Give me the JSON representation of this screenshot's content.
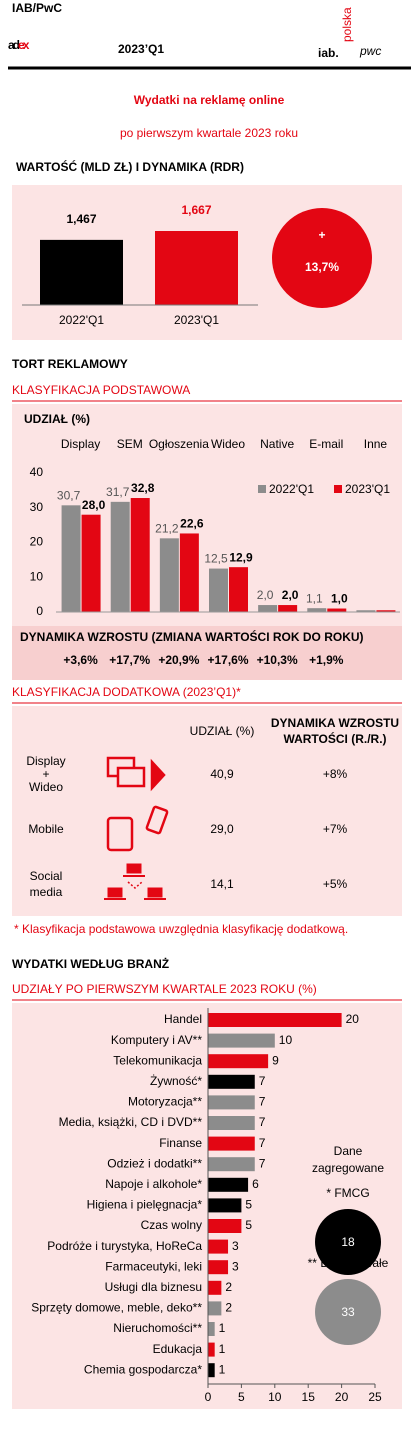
{
  "header": {
    "brand_top": "IAB/PwC",
    "brand_a": "ad",
    "brand_b": "ex",
    "period": "2023’Q1",
    "logo_iab": "iab.",
    "logo_iab_sub": "polska",
    "logo_pwc": "pwc",
    "title": "Wydatki na reklamę online",
    "subtitle": "po pierwszym kwartale 2023 roku"
  },
  "chart_data": [
    {
      "type": "bar",
      "title": "WARTOŚĆ (MLD ZŁ) I DYNAMIKA (RDR)",
      "categories": [
        "2022'Q1",
        "2023'Q1"
      ],
      "values": [
        1.467,
        1.667
      ],
      "value_labels": [
        "1,467",
        "1,667"
      ],
      "colors": [
        "#000000",
        "#e30613"
      ],
      "growth_sign": "+",
      "growth_label": "13,7%"
    },
    {
      "type": "grouped-bar",
      "title": "TORT REKLAMOWY",
      "subtitle": "KLASYFIKACJA PODSTAWOWA",
      "ylabel": "UDZIAŁ (%)",
      "categories": [
        "Display",
        "SEM",
        "Ogłoszenia",
        "Wideo",
        "Native",
        "E-mail",
        "Inne"
      ],
      "series": [
        {
          "name": "2022'Q1",
          "color": "#8c8c8c",
          "values": [
            30.7,
            31.7,
            21.2,
            12.5,
            2.0,
            1.1,
            0.5
          ],
          "value_labels": [
            "30,7",
            "31,7",
            "21,2",
            "12,5",
            "2,0",
            "1,1",
            null
          ]
        },
        {
          "name": "2023'Q1",
          "color": "#e30613",
          "values": [
            28.0,
            32.8,
            22.6,
            12.9,
            2.0,
            1.0,
            0.5
          ],
          "value_labels": [
            "28,0",
            "32,8",
            "22,6",
            "12,9",
            "2,0",
            "1,0",
            null
          ]
        }
      ],
      "ylim": [
        0,
        40
      ],
      "yticks": [
        0,
        10,
        20,
        30,
        40
      ],
      "grid": false,
      "growth_title": "DYNAMIKA WZROSTU (ZMIANA WARTOŚCI ROK DO ROKU)",
      "growth_labels": [
        "+3,6%",
        "+17,7%",
        "+20,9%",
        "+17,6%",
        "+10,3%",
        "+1,9%"
      ]
    },
    {
      "type": "barh",
      "title": "WYDATKI WEDŁUG BRANŻ",
      "subtitle": "UDZIAŁY PO PIERWSZYM KWARTALE 2023 ROKU (%)",
      "categories": [
        "Handel",
        "Komputery i AV**",
        "Telekomunikacja",
        "Żywność*",
        "Motoryzacja**",
        "Media, książki, CD i DVD**",
        "Finanse",
        "Odzież i dodatki**",
        "Napoje i alkohole*",
        "Higiena i pielęgnacja*",
        "Czas wolny",
        "Podróże i turystyka, HoReCa",
        "Farmaceutyki, leki",
        "Usługi dla biznesu",
        "Sprzęty domowe, meble, deko**",
        "Nieruchomości**",
        "Edukacja",
        "Chemia gospodarcza*"
      ],
      "values": [
        20,
        10,
        9,
        7,
        7,
        7,
        7,
        7,
        6,
        5,
        5,
        3,
        3,
        2,
        2,
        1,
        1,
        1
      ],
      "colors": [
        "#e30613",
        "#8c8c8c",
        "#e30613",
        "#000000",
        "#8c8c8c",
        "#8c8c8c",
        "#e30613",
        "#8c8c8c",
        "#000000",
        "#000000",
        "#e30613",
        "#e30613",
        "#e30613",
        "#e30613",
        "#8c8c8c",
        "#8c8c8c",
        "#e30613",
        "#000000"
      ],
      "xlim": [
        0,
        25
      ],
      "xticks": [
        0,
        5,
        10,
        15,
        20,
        25
      ],
      "aggregate_title_1": "Dane",
      "aggregate_title_2": "zagregowane",
      "aggregates": [
        {
          "label": "* FMCG",
          "value": 18,
          "color": "#000000"
        },
        {
          "label": "** Dobra trwałe",
          "value": 33,
          "color": "#8c8c8c"
        }
      ]
    }
  ],
  "extra": {
    "title": "KLASYFIKACJA DODATKOWA (2023’Q1)*",
    "col_share": "UDZIAŁ (%)",
    "col_growth_1": "DYNAMIKA WZROSTU",
    "col_growth_2": "WARTOŚCI (R./R.)",
    "rows": [
      {
        "label": [
          "Display",
          "+",
          "Wideo"
        ],
        "share": "40,9",
        "growth": "+8%"
      },
      {
        "label": [
          "Mobile"
        ],
        "share": "29,0",
        "growth": "+7%"
      },
      {
        "label": [
          "Social",
          "media"
        ],
        "share": "14,1",
        "growth": "+5%"
      }
    ],
    "footnote": "* Klasyfikacja podstawowa uwzględnia klasyfikację dodatkową."
  }
}
